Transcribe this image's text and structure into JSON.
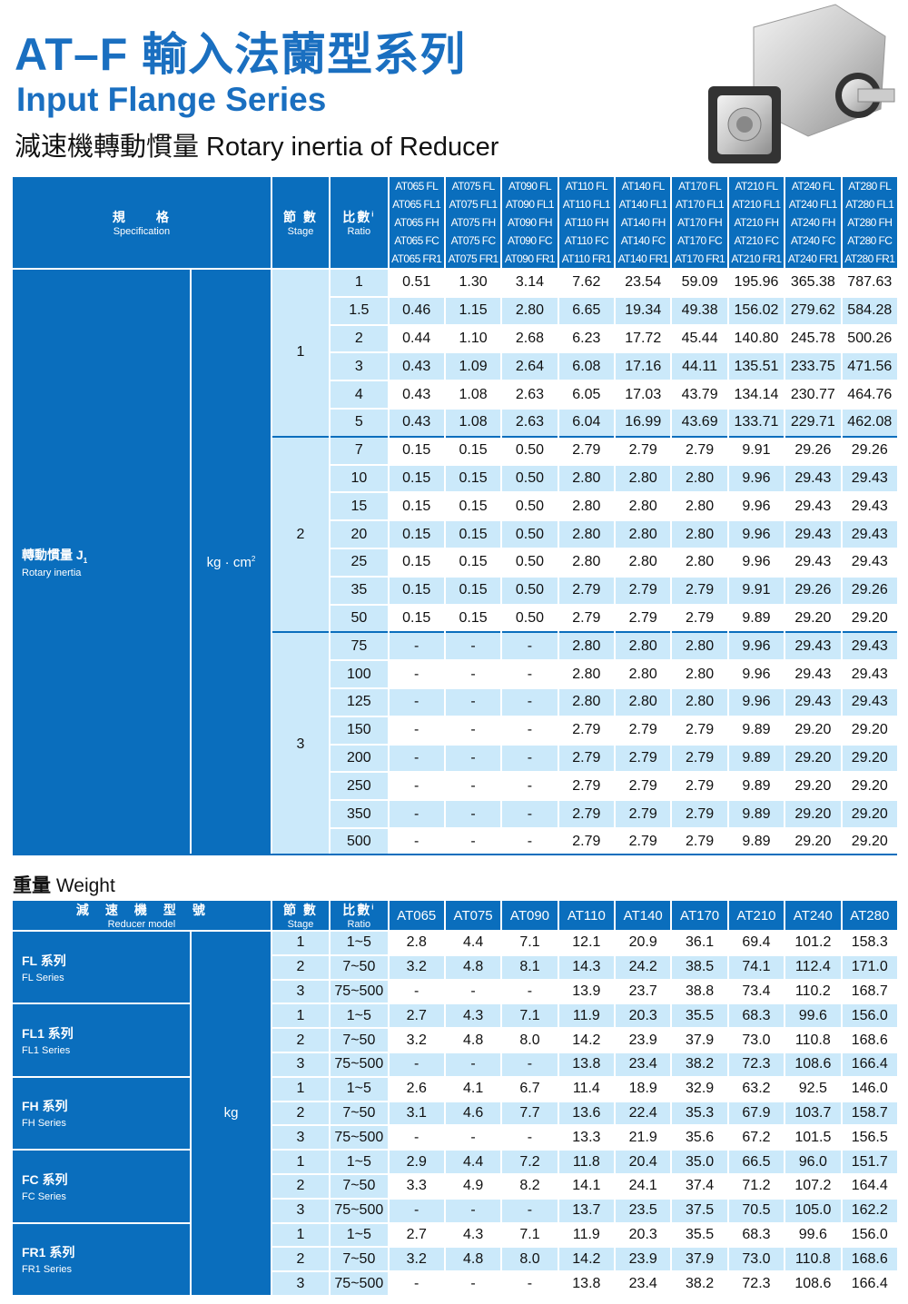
{
  "header": {
    "title_zh": "AT–F 輸入法蘭型系列",
    "title_en": "Input Flange Series",
    "subtitle": "減速機轉動慣量 Rotary inertia of Reducer"
  },
  "colors": {
    "brand_blue": "#0a6ebd",
    "light_blue": "#cbe9fa",
    "title_blue": "#1a6fc0"
  },
  "rotary": {
    "spec_zh": "規　　格",
    "spec_en": "Specification",
    "stage_zh": "節 數",
    "stage_en": "Stage",
    "ratio_zh": "比數",
    "ratio_sup": "i",
    "ratio_en": "Ratio",
    "models": [
      [
        "AT065 FL",
        "AT065 FL1",
        "AT065 FH",
        "AT065 FC",
        "AT065 FR1"
      ],
      [
        "AT075 FL",
        "AT075 FL1",
        "AT075 FH",
        "AT075 FC",
        "AT075 FR1"
      ],
      [
        "AT090 FL",
        "AT090 FL1",
        "AT090 FH",
        "AT090 FC",
        "AT090 FR1"
      ],
      [
        "AT110 FL",
        "AT110 FL1",
        "AT110 FH",
        "AT110 FC",
        "AT110 FR1"
      ],
      [
        "AT140 FL",
        "AT140 FL1",
        "AT140 FH",
        "AT140 FC",
        "AT140 FR1"
      ],
      [
        "AT170 FL",
        "AT170 FL1",
        "AT170 FH",
        "AT170 FC",
        "AT170 FR1"
      ],
      [
        "AT210 FL",
        "AT210 FL1",
        "AT210 FH",
        "AT210 FC",
        "AT210 FR1"
      ],
      [
        "AT240 FL",
        "AT240 FL1",
        "AT240 FH",
        "AT240 FC",
        "AT240 FR1"
      ],
      [
        "AT280 FL",
        "AT280 FL1",
        "AT280 FH",
        "AT280 FC",
        "AT280 FR1"
      ]
    ],
    "label_zh": "轉動慣量 J",
    "label_sub": "1",
    "label_en": "Rotary inertia",
    "unit": "kg · cm",
    "unit_sup": "2",
    "groups": [
      {
        "stage": "1",
        "rows": [
          {
            "ratio": "1",
            "values": [
              "0.51",
              "1.30",
              "3.14",
              "7.62",
              "23.54",
              "59.09",
              "195.96",
              "365.38",
              "787.63"
            ]
          },
          {
            "ratio": "1.5",
            "values": [
              "0.46",
              "1.15",
              "2.80",
              "6.65",
              "19.34",
              "49.38",
              "156.02",
              "279.62",
              "584.28"
            ]
          },
          {
            "ratio": "2",
            "values": [
              "0.44",
              "1.10",
              "2.68",
              "6.23",
              "17.72",
              "45.44",
              "140.80",
              "245.78",
              "500.26"
            ]
          },
          {
            "ratio": "3",
            "values": [
              "0.43",
              "1.09",
              "2.64",
              "6.08",
              "17.16",
              "44.11",
              "135.51",
              "233.75",
              "471.56"
            ]
          },
          {
            "ratio": "4",
            "values": [
              "0.43",
              "1.08",
              "2.63",
              "6.05",
              "17.03",
              "43.79",
              "134.14",
              "230.77",
              "464.76"
            ]
          },
          {
            "ratio": "5",
            "values": [
              "0.43",
              "1.08",
              "2.63",
              "6.04",
              "16.99",
              "43.69",
              "133.71",
              "229.71",
              "462.08"
            ]
          }
        ]
      },
      {
        "stage": "2",
        "rows": [
          {
            "ratio": "7",
            "values": [
              "0.15",
              "0.15",
              "0.50",
              "2.79",
              "2.79",
              "2.79",
              "9.91",
              "29.26",
              "29.26"
            ]
          },
          {
            "ratio": "10",
            "values": [
              "0.15",
              "0.15",
              "0.50",
              "2.80",
              "2.80",
              "2.80",
              "9.96",
              "29.43",
              "29.43"
            ]
          },
          {
            "ratio": "15",
            "values": [
              "0.15",
              "0.15",
              "0.50",
              "2.80",
              "2.80",
              "2.80",
              "9.96",
              "29.43",
              "29.43"
            ]
          },
          {
            "ratio": "20",
            "values": [
              "0.15",
              "0.15",
              "0.50",
              "2.80",
              "2.80",
              "2.80",
              "9.96",
              "29.43",
              "29.43"
            ]
          },
          {
            "ratio": "25",
            "values": [
              "0.15",
              "0.15",
              "0.50",
              "2.80",
              "2.80",
              "2.80",
              "9.96",
              "29.43",
              "29.43"
            ]
          },
          {
            "ratio": "35",
            "values": [
              "0.15",
              "0.15",
              "0.50",
              "2.79",
              "2.79",
              "2.79",
              "9.91",
              "29.26",
              "29.26"
            ]
          },
          {
            "ratio": "50",
            "values": [
              "0.15",
              "0.15",
              "0.50",
              "2.79",
              "2.79",
              "2.79",
              "9.89",
              "29.20",
              "29.20"
            ]
          }
        ]
      },
      {
        "stage": "3",
        "rows": [
          {
            "ratio": "75",
            "values": [
              "-",
              "-",
              "-",
              "2.80",
              "2.80",
              "2.80",
              "9.96",
              "29.43",
              "29.43"
            ]
          },
          {
            "ratio": "100",
            "values": [
              "-",
              "-",
              "-",
              "2.80",
              "2.80",
              "2.80",
              "9.96",
              "29.43",
              "29.43"
            ]
          },
          {
            "ratio": "125",
            "values": [
              "-",
              "-",
              "-",
              "2.80",
              "2.80",
              "2.80",
              "9.96",
              "29.43",
              "29.43"
            ]
          },
          {
            "ratio": "150",
            "values": [
              "-",
              "-",
              "-",
              "2.79",
              "2.79",
              "2.79",
              "9.89",
              "29.20",
              "29.20"
            ]
          },
          {
            "ratio": "200",
            "values": [
              "-",
              "-",
              "-",
              "2.79",
              "2.79",
              "2.79",
              "9.89",
              "29.20",
              "29.20"
            ]
          },
          {
            "ratio": "250",
            "values": [
              "-",
              "-",
              "-",
              "2.79",
              "2.79",
              "2.79",
              "9.89",
              "29.20",
              "29.20"
            ]
          },
          {
            "ratio": "350",
            "values": [
              "-",
              "-",
              "-",
              "2.79",
              "2.79",
              "2.79",
              "9.89",
              "29.20",
              "29.20"
            ]
          },
          {
            "ratio": "500",
            "values": [
              "-",
              "-",
              "-",
              "2.79",
              "2.79",
              "2.79",
              "9.89",
              "29.20",
              "29.20"
            ]
          }
        ]
      }
    ]
  },
  "weight": {
    "title_zh": "重量",
    "title_en": "Weight",
    "model_zh": "減　速　機　型　號",
    "model_en": "Reducer model",
    "stage_zh": "節 數",
    "stage_en": "Stage",
    "ratio_zh": "比數",
    "ratio_sup": "i",
    "ratio_en": "Ratio",
    "models": [
      "AT065",
      "AT075",
      "AT090",
      "AT110",
      "AT140",
      "AT170",
      "AT210",
      "AT240",
      "AT280"
    ],
    "unit": "kg",
    "series": [
      {
        "name_zh": "FL 系列",
        "name_en": "FL Series",
        "rows": [
          {
            "stage": "1",
            "ratio": "1~5",
            "values": [
              "2.8",
              "4.4",
              "7.1",
              "12.1",
              "20.9",
              "36.1",
              "69.4",
              "101.2",
              "158.3"
            ]
          },
          {
            "stage": "2",
            "ratio": "7~50",
            "values": [
              "3.2",
              "4.8",
              "8.1",
              "14.3",
              "24.2",
              "38.5",
              "74.1",
              "112.4",
              "171.0"
            ]
          },
          {
            "stage": "3",
            "ratio": "75~500",
            "values": [
              "-",
              "-",
              "-",
              "13.9",
              "23.7",
              "38.8",
              "73.4",
              "110.2",
              "168.7"
            ]
          }
        ]
      },
      {
        "name_zh": "FL1 系列",
        "name_en": "FL1 Series",
        "rows": [
          {
            "stage": "1",
            "ratio": "1~5",
            "values": [
              "2.7",
              "4.3",
              "7.1",
              "11.9",
              "20.3",
              "35.5",
              "68.3",
              "99.6",
              "156.0"
            ]
          },
          {
            "stage": "2",
            "ratio": "7~50",
            "values": [
              "3.2",
              "4.8",
              "8.0",
              "14.2",
              "23.9",
              "37.9",
              "73.0",
              "110.8",
              "168.6"
            ]
          },
          {
            "stage": "3",
            "ratio": "75~500",
            "values": [
              "-",
              "-",
              "-",
              "13.8",
              "23.4",
              "38.2",
              "72.3",
              "108.6",
              "166.4"
            ]
          }
        ]
      },
      {
        "name_zh": "FH 系列",
        "name_en": "FH Series",
        "rows": [
          {
            "stage": "1",
            "ratio": "1~5",
            "values": [
              "2.6",
              "4.1",
              "6.7",
              "11.4",
              "18.9",
              "32.9",
              "63.2",
              "92.5",
              "146.0"
            ]
          },
          {
            "stage": "2",
            "ratio": "7~50",
            "values": [
              "3.1",
              "4.6",
              "7.7",
              "13.6",
              "22.4",
              "35.3",
              "67.9",
              "103.7",
              "158.7"
            ]
          },
          {
            "stage": "3",
            "ratio": "75~500",
            "values": [
              "-",
              "-",
              "-",
              "13.3",
              "21.9",
              "35.6",
              "67.2",
              "101.5",
              "156.5"
            ]
          }
        ]
      },
      {
        "name_zh": "FC 系列",
        "name_en": "FC Series",
        "rows": [
          {
            "stage": "1",
            "ratio": "1~5",
            "values": [
              "2.9",
              "4.4",
              "7.2",
              "11.8",
              "20.4",
              "35.0",
              "66.5",
              "96.0",
              "151.7"
            ]
          },
          {
            "stage": "2",
            "ratio": "7~50",
            "values": [
              "3.3",
              "4.9",
              "8.2",
              "14.1",
              "24.1",
              "37.4",
              "71.2",
              "107.2",
              "164.4"
            ]
          },
          {
            "stage": "3",
            "ratio": "75~500",
            "values": [
              "-",
              "-",
              "-",
              "13.7",
              "23.5",
              "37.5",
              "70.5",
              "105.0",
              "162.2"
            ]
          }
        ]
      },
      {
        "name_zh": "FR1 系列",
        "name_en": "FR1 Series",
        "rows": [
          {
            "stage": "1",
            "ratio": "1~5",
            "values": [
              "2.7",
              "4.3",
              "7.1",
              "11.9",
              "20.3",
              "35.5",
              "68.3",
              "99.6",
              "156.0"
            ]
          },
          {
            "stage": "2",
            "ratio": "7~50",
            "values": [
              "3.2",
              "4.8",
              "8.0",
              "14.2",
              "23.9",
              "37.9",
              "73.0",
              "110.8",
              "168.6"
            ]
          },
          {
            "stage": "3",
            "ratio": "75~500",
            "values": [
              "-",
              "-",
              "-",
              "13.8",
              "23.4",
              "38.2",
              "72.3",
              "108.6",
              "166.4"
            ]
          }
        ]
      }
    ]
  }
}
